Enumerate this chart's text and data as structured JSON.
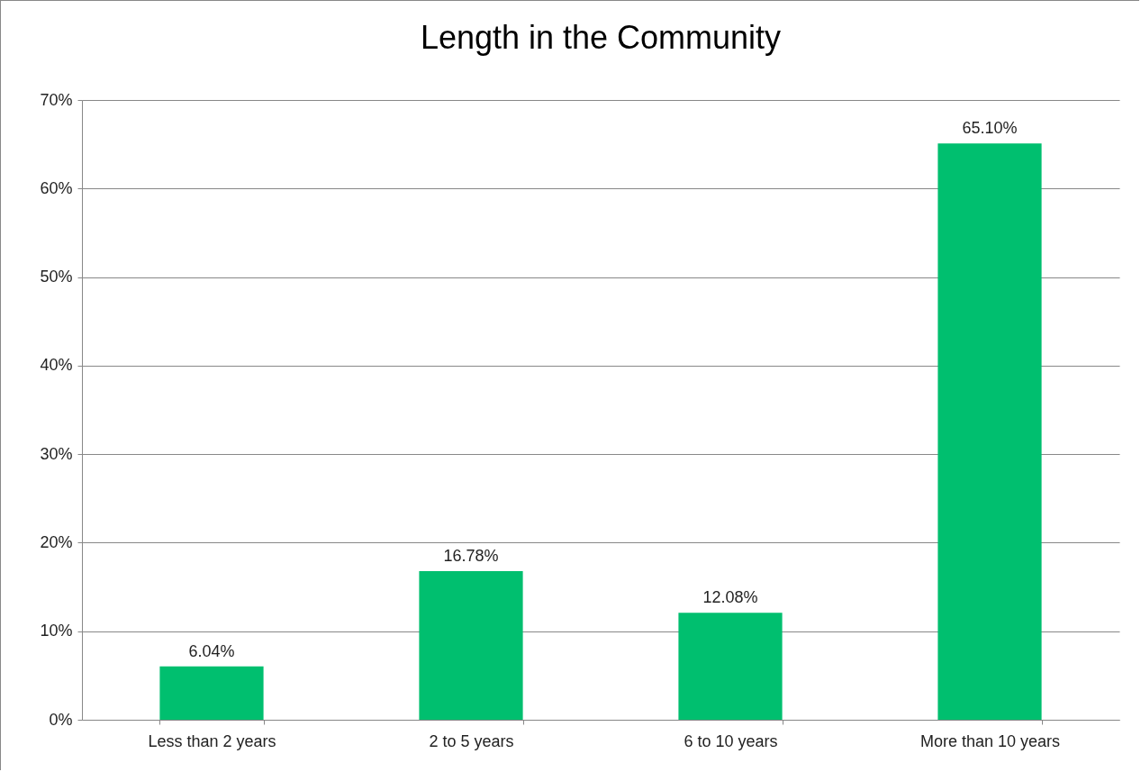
{
  "chart_data": {
    "type": "bar",
    "title": "Length in the Community",
    "categories": [
      "Less than 2 years",
      "2 to 5 years",
      "6 to 10 years",
      "More than 10 years"
    ],
    "values": [
      6.04,
      16.78,
      12.08,
      65.1
    ],
    "value_labels": [
      "6.04%",
      "16.78%",
      "12.08%",
      "65.10%"
    ],
    "color": "#00bf6f",
    "ylim": [
      0,
      70
    ],
    "yticks": [
      {
        "value": 0,
        "label": "0%"
      },
      {
        "value": 10,
        "label": "10%"
      },
      {
        "value": 20,
        "label": "20%"
      },
      {
        "value": 30,
        "label": "30%"
      },
      {
        "value": 40,
        "label": "40%"
      },
      {
        "value": 50,
        "label": "50%"
      },
      {
        "value": 60,
        "label": "60%"
      },
      {
        "value": 70,
        "label": "70%"
      }
    ],
    "grid": "y"
  }
}
